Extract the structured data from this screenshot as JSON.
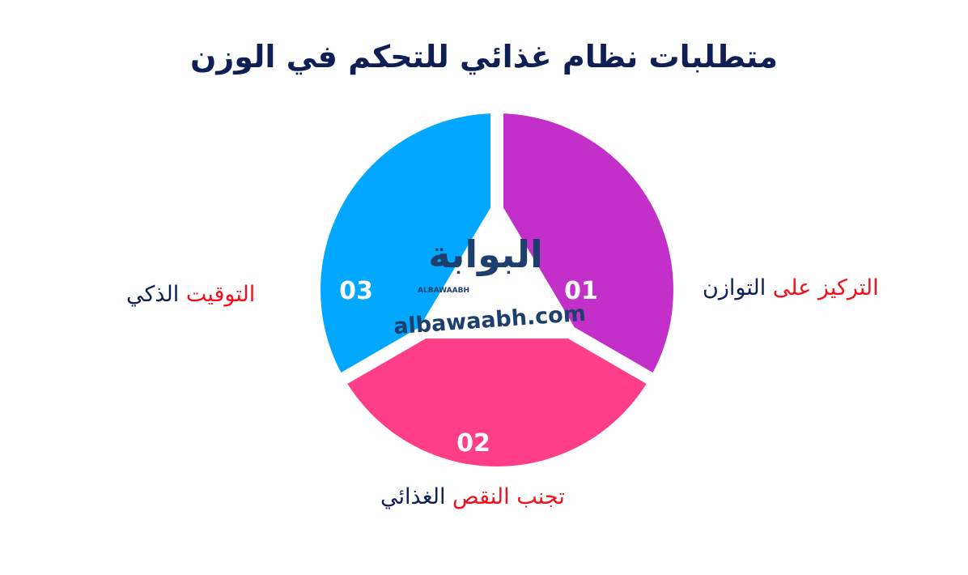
{
  "title": "متطلبات نظام غذائي للتحكم في الوزن",
  "colors": {
    "segment_1": "#c330c9",
    "segment_2": "#ff3e8a",
    "segment_3": "#02a8ff",
    "title": "#0e1f55",
    "highlight": "#f2101a"
  },
  "segments": [
    {
      "number": "01",
      "label_highlight": "التركيز على",
      "label_rest": "التوازن"
    },
    {
      "number": "02",
      "label_highlight": "تجنب النقص",
      "label_rest": "الغذائي"
    },
    {
      "number": "03",
      "label_highlight": "التوقيت",
      "label_rest": "الذكي"
    }
  ],
  "watermark": {
    "arabic": "البوابة",
    "latin_small": "ALBAWAABH",
    "domain": "albawaabh.com"
  }
}
